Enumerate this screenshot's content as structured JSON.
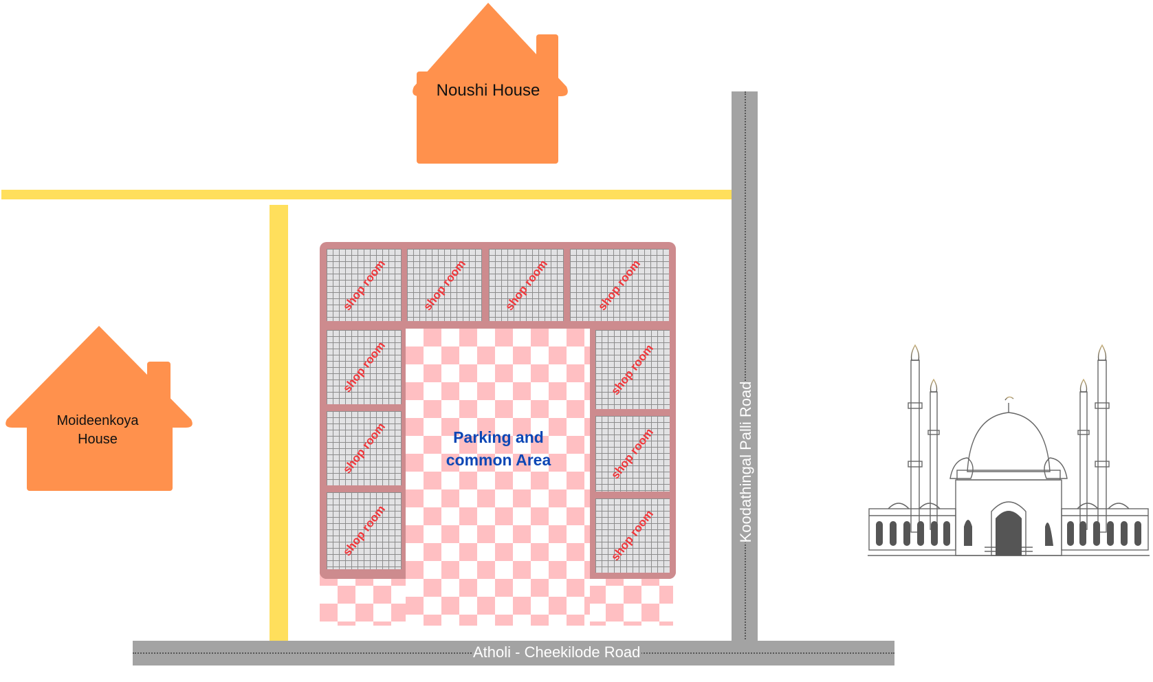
{
  "houses": {
    "noushi": {
      "label": "Noushi House",
      "color": "#ff914d"
    },
    "moideenkoya": {
      "line1": "Moideenkoya",
      "line2": "House",
      "color": "#ff914d"
    }
  },
  "complex": {
    "center_label_line1": "Parking and",
    "center_label_line2": "common Area",
    "center_label_color": "#0d47b5",
    "shop_label": "shop room",
    "shop_label_color": "#f0373b",
    "frame_color": "#cd8b8e",
    "checker_color": "#ffbfc2"
  },
  "roads": {
    "bottom_label": "Atholi - Cheekilode Road",
    "vertical_label": "Koodathingal Palli Road",
    "road_color": "#a3a3a3",
    "path_color": "#ffdf5c"
  },
  "landmark": {
    "icon": "mosque-icon"
  }
}
